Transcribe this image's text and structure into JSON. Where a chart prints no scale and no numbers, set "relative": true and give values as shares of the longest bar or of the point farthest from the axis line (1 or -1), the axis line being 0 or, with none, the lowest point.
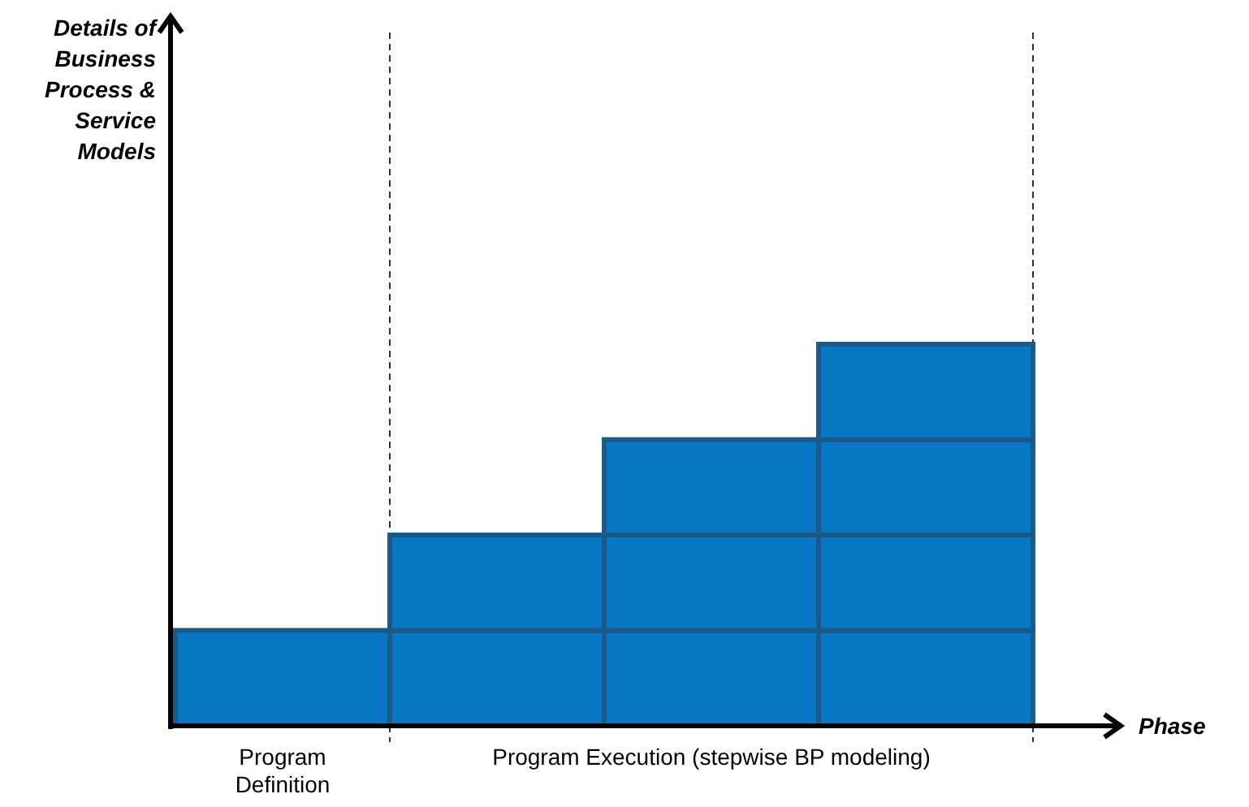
{
  "chart_data": {
    "type": "bar",
    "stacked": true,
    "relative": true,
    "xlabel": "Phase",
    "annotations": [
      "Details of Business Process & Service Models"
    ],
    "categories": [
      "Program Definition",
      null,
      "Program Execution (stepwise BP modeling)",
      null
    ],
    "series": [
      {
        "color": "#0878c4",
        "values": [
          0.25,
          0.25,
          0.25,
          0.25
        ]
      },
      {
        "color": "#0878c4",
        "values": [
          null,
          0.25,
          0.25,
          0.25
        ]
      },
      {
        "color": "#0878c4",
        "values": [
          null,
          null,
          0.25,
          0.25
        ]
      },
      {
        "color": "#0878c4",
        "values": [
          null,
          null,
          null,
          0.25
        ]
      }
    ]
  }
}
